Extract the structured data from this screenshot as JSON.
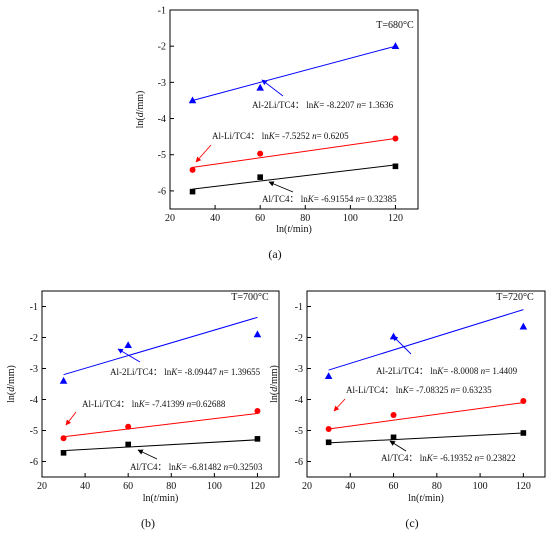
{
  "figure": {
    "panel_labels": [
      "(a)",
      "(b)",
      "(c)"
    ]
  },
  "chart_data": [
    {
      "type": "scatter",
      "panel": "(a)",
      "temperature_label": "T=680°C",
      "xlabel": "ln(t/min)",
      "ylabel": "ln(d/mm)",
      "xlim": [
        20,
        130
      ],
      "ylim": [
        -6.5,
        -1
      ],
      "xticks": [
        20,
        40,
        60,
        80,
        100,
        120
      ],
      "yticks": [
        -6,
        -5,
        -4,
        -3,
        -2,
        -1
      ],
      "series": [
        {
          "color": "#0000ff",
          "marker": "triangle",
          "points": [
            [
              30,
              -3.5
            ],
            [
              60,
              -3.15
            ],
            [
              120,
              -2.0
            ]
          ],
          "fit": [
            [
              30,
              -3.5
            ],
            [
              120,
              -2.0
            ]
          ],
          "annotation": "Al-2Li/TC4：  ln",
          "annotation_k": "K",
          "annotation_kval": "= -8.2207",
          "annotation_n": "n",
          "annotation_nval": "= 1.3636"
        },
        {
          "color": "#ff0000",
          "marker": "circle",
          "points": [
            [
              30,
              -5.42
            ],
            [
              60,
              -4.97
            ],
            [
              120,
              -4.55
            ]
          ],
          "fit": [
            [
              30,
              -5.35
            ],
            [
              120,
              -4.55
            ]
          ],
          "annotation": "Al-Li/TC4：  ln",
          "annotation_k": "K",
          "annotation_kval": "= -7.5252",
          "annotation_n": "n",
          "annotation_nval": "= 0.6205"
        },
        {
          "color": "#000000",
          "marker": "square",
          "points": [
            [
              30,
              -6.02
            ],
            [
              60,
              -5.62
            ],
            [
              120,
              -5.32
            ]
          ],
          "fit": [
            [
              30,
              -5.95
            ],
            [
              120,
              -5.28
            ]
          ],
          "annotation": "Al/TC4：  ln",
          "annotation_k": "K",
          "annotation_kval": "= -6.91554",
          "annotation_n": "n",
          "annotation_nval": "= 0.32385"
        }
      ]
    },
    {
      "type": "scatter",
      "panel": "(b)",
      "temperature_label": "T=700°C",
      "xlabel": "ln(t/min)",
      "ylabel": "ln(d/mm)",
      "xlim": [
        20,
        130
      ],
      "ylim": [
        -6.5,
        -0.5
      ],
      "xticks": [
        20,
        40,
        60,
        80,
        100,
        120
      ],
      "yticks": [
        -6,
        -5,
        -4,
        -3,
        -2,
        -1
      ],
      "series": [
        {
          "color": "#0000ff",
          "marker": "triangle",
          "points": [
            [
              30,
              -3.4
            ],
            [
              60,
              -2.25
            ],
            [
              120,
              -1.9
            ]
          ],
          "fit": [
            [
              30,
              -3.2
            ],
            [
              120,
              -1.35
            ]
          ],
          "annotation": "Al-2Li/TC4：  ln",
          "annotation_k": "K",
          "annotation_kval": "= -8.09447",
          "annotation_n": "n",
          "annotation_nval": "= 1.39655"
        },
        {
          "color": "#ff0000",
          "marker": "circle",
          "points": [
            [
              30,
              -5.25
            ],
            [
              60,
              -4.88
            ],
            [
              120,
              -4.37
            ]
          ],
          "fit": [
            [
              30,
              -5.2
            ],
            [
              120,
              -4.45
            ]
          ],
          "annotation": "Al-Li/TC4：  ln",
          "annotation_k": "K",
          "annotation_kval": "= -7.41399",
          "annotation_n": "n",
          "annotation_nval": "=0.62688"
        },
        {
          "color": "#000000",
          "marker": "square",
          "points": [
            [
              30,
              -5.72
            ],
            [
              60,
              -5.45
            ],
            [
              120,
              -5.27
            ]
          ],
          "fit": [
            [
              30,
              -5.65
            ],
            [
              120,
              -5.3
            ]
          ],
          "annotation": "Al/TC4：  ln",
          "annotation_k": "K",
          "annotation_kval": "= -6.81482",
          "annotation_n": "n",
          "annotation_nval": "=0.32503"
        }
      ]
    },
    {
      "type": "scatter",
      "panel": "(c)",
      "temperature_label": "T=720°C",
      "xlabel": "ln(t/min)",
      "ylabel": "ln(d/mm)",
      "xlim": [
        20,
        130
      ],
      "ylim": [
        -6.5,
        -0.5
      ],
      "xticks": [
        20,
        40,
        60,
        80,
        100,
        120
      ],
      "yticks": [
        -6,
        -5,
        -4,
        -3,
        -2,
        -1
      ],
      "series": [
        {
          "color": "#0000ff",
          "marker": "triangle",
          "points": [
            [
              30,
              -3.25
            ],
            [
              60,
              -1.97
            ],
            [
              120,
              -1.65
            ]
          ],
          "fit": [
            [
              30,
              -3.05
            ],
            [
              120,
              -1.1
            ]
          ],
          "annotation": "Al-2Li/TC4：  ln",
          "annotation_k": "K",
          "annotation_kval": "= -8.0008",
          "annotation_n": "n",
          "annotation_nval": "= 1.4409"
        },
        {
          "color": "#ff0000",
          "marker": "circle",
          "points": [
            [
              30,
              -4.95
            ],
            [
              60,
              -4.5
            ],
            [
              120,
              -4.05
            ]
          ],
          "fit": [
            [
              30,
              -4.95
            ],
            [
              120,
              -4.1
            ]
          ],
          "annotation": "Al-Li/TC4：  ln",
          "annotation_k": "K",
          "annotation_kval": "= -7.08325",
          "annotation_n": "n",
          "annotation_nval": "= 0.63235"
        },
        {
          "color": "#000000",
          "marker": "square",
          "points": [
            [
              30,
              -5.38
            ],
            [
              60,
              -5.22
            ],
            [
              120,
              -5.08
            ]
          ],
          "fit": [
            [
              30,
              -5.4
            ],
            [
              120,
              -5.08
            ]
          ],
          "annotation": "Al/TC4：  ln",
          "annotation_k": "K",
          "annotation_kval": "= -6.19352",
          "annotation_n": "n",
          "annotation_nval": "= 0.23822"
        }
      ]
    }
  ]
}
